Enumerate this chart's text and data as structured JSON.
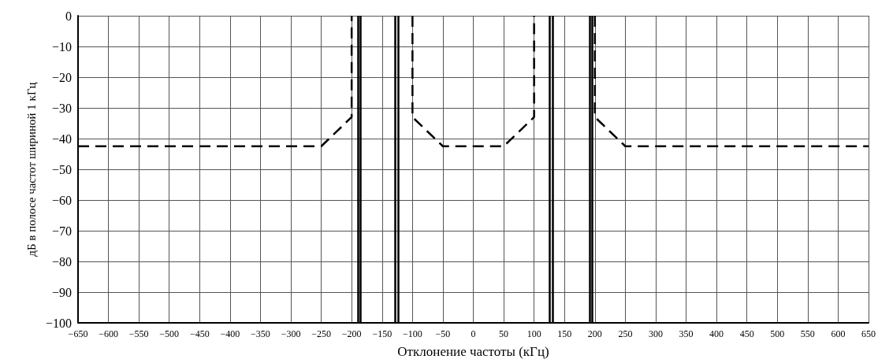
{
  "chart_data": {
    "type": "line",
    "xlabel": "Отклонение частоты (кГц)",
    "ylabel": "дБ в полосе частот шириной 1 кГц",
    "series": [
      {
        "color": "#000000",
        "x": [
          -650,
          -250,
          -200,
          -200
        ],
        "values": [
          -42.5,
          -42.5,
          -33,
          0
        ]
      },
      {
        "color": "#000000",
        "x": [
          -100,
          -100,
          -50,
          50,
          100,
          100
        ],
        "values": [
          0,
          -33,
          -42.5,
          -42.5,
          -33,
          0
        ]
      },
      {
        "color": "#000000",
        "x": [
          200,
          200,
          250,
          650
        ],
        "values": [
          0,
          -33,
          -42.5,
          -42.5
        ]
      }
    ],
    "ref_lines": [
      {
        "axis": "x",
        "value": -190,
        "color": "#000000",
        "line_style": "solid"
      },
      {
        "axis": "x",
        "value": -186,
        "color": "#000000",
        "line_style": "solid"
      },
      {
        "axis": "x",
        "value": -128,
        "color": "#000000",
        "line_style": "solid"
      },
      {
        "axis": "x",
        "value": -124,
        "color": "#000000",
        "line_style": "solid"
      },
      {
        "axis": "x",
        "value": 125,
        "color": "#000000",
        "line_style": "solid"
      },
      {
        "axis": "x",
        "value": 130,
        "color": "#000000",
        "line_style": "solid"
      },
      {
        "axis": "x",
        "value": 192,
        "color": "#000000",
        "line_style": "solid"
      },
      {
        "axis": "x",
        "value": 196,
        "color": "#000000",
        "line_style": "solid"
      }
    ],
    "xlim": [
      -650,
      650
    ],
    "xticks": [
      {
        "value": -650,
        "label": "−650"
      },
      {
        "value": -600,
        "label": "−600"
      },
      {
        "value": -550,
        "label": "−550"
      },
      {
        "value": -500,
        "label": "−500"
      },
      {
        "value": -450,
        "label": "−450"
      },
      {
        "value": -400,
        "label": "−400"
      },
      {
        "value": -350,
        "label": "−350"
      },
      {
        "value": -300,
        "label": "−300"
      },
      {
        "value": -250,
        "label": "−250"
      },
      {
        "value": -200,
        "label": "−200"
      },
      {
        "value": -150,
        "label": "−150"
      },
      {
        "value": -100,
        "label": "−100"
      },
      {
        "value": -50,
        "label": "−50"
      },
      0,
      50,
      100,
      150,
      200,
      250,
      300,
      350,
      400,
      450,
      500,
      550,
      600,
      650
    ],
    "ylim": [
      -100,
      0
    ],
    "yticks": [
      {
        "value": -100,
        "label": "−100"
      },
      {
        "value": -90,
        "label": "−90"
      },
      {
        "value": -80,
        "label": "−80"
      },
      {
        "value": -70,
        "label": "−70"
      },
      {
        "value": -60,
        "label": "−60"
      },
      {
        "value": -50,
        "label": "−50"
      },
      {
        "value": -40,
        "label": "−40"
      },
      {
        "value": -30,
        "label": "−30"
      },
      {
        "value": -20,
        "label": "−20"
      },
      {
        "value": -10,
        "label": "−10"
      },
      0
    ],
    "grid": true,
    "marker": "none",
    "line_style": "dashed"
  }
}
